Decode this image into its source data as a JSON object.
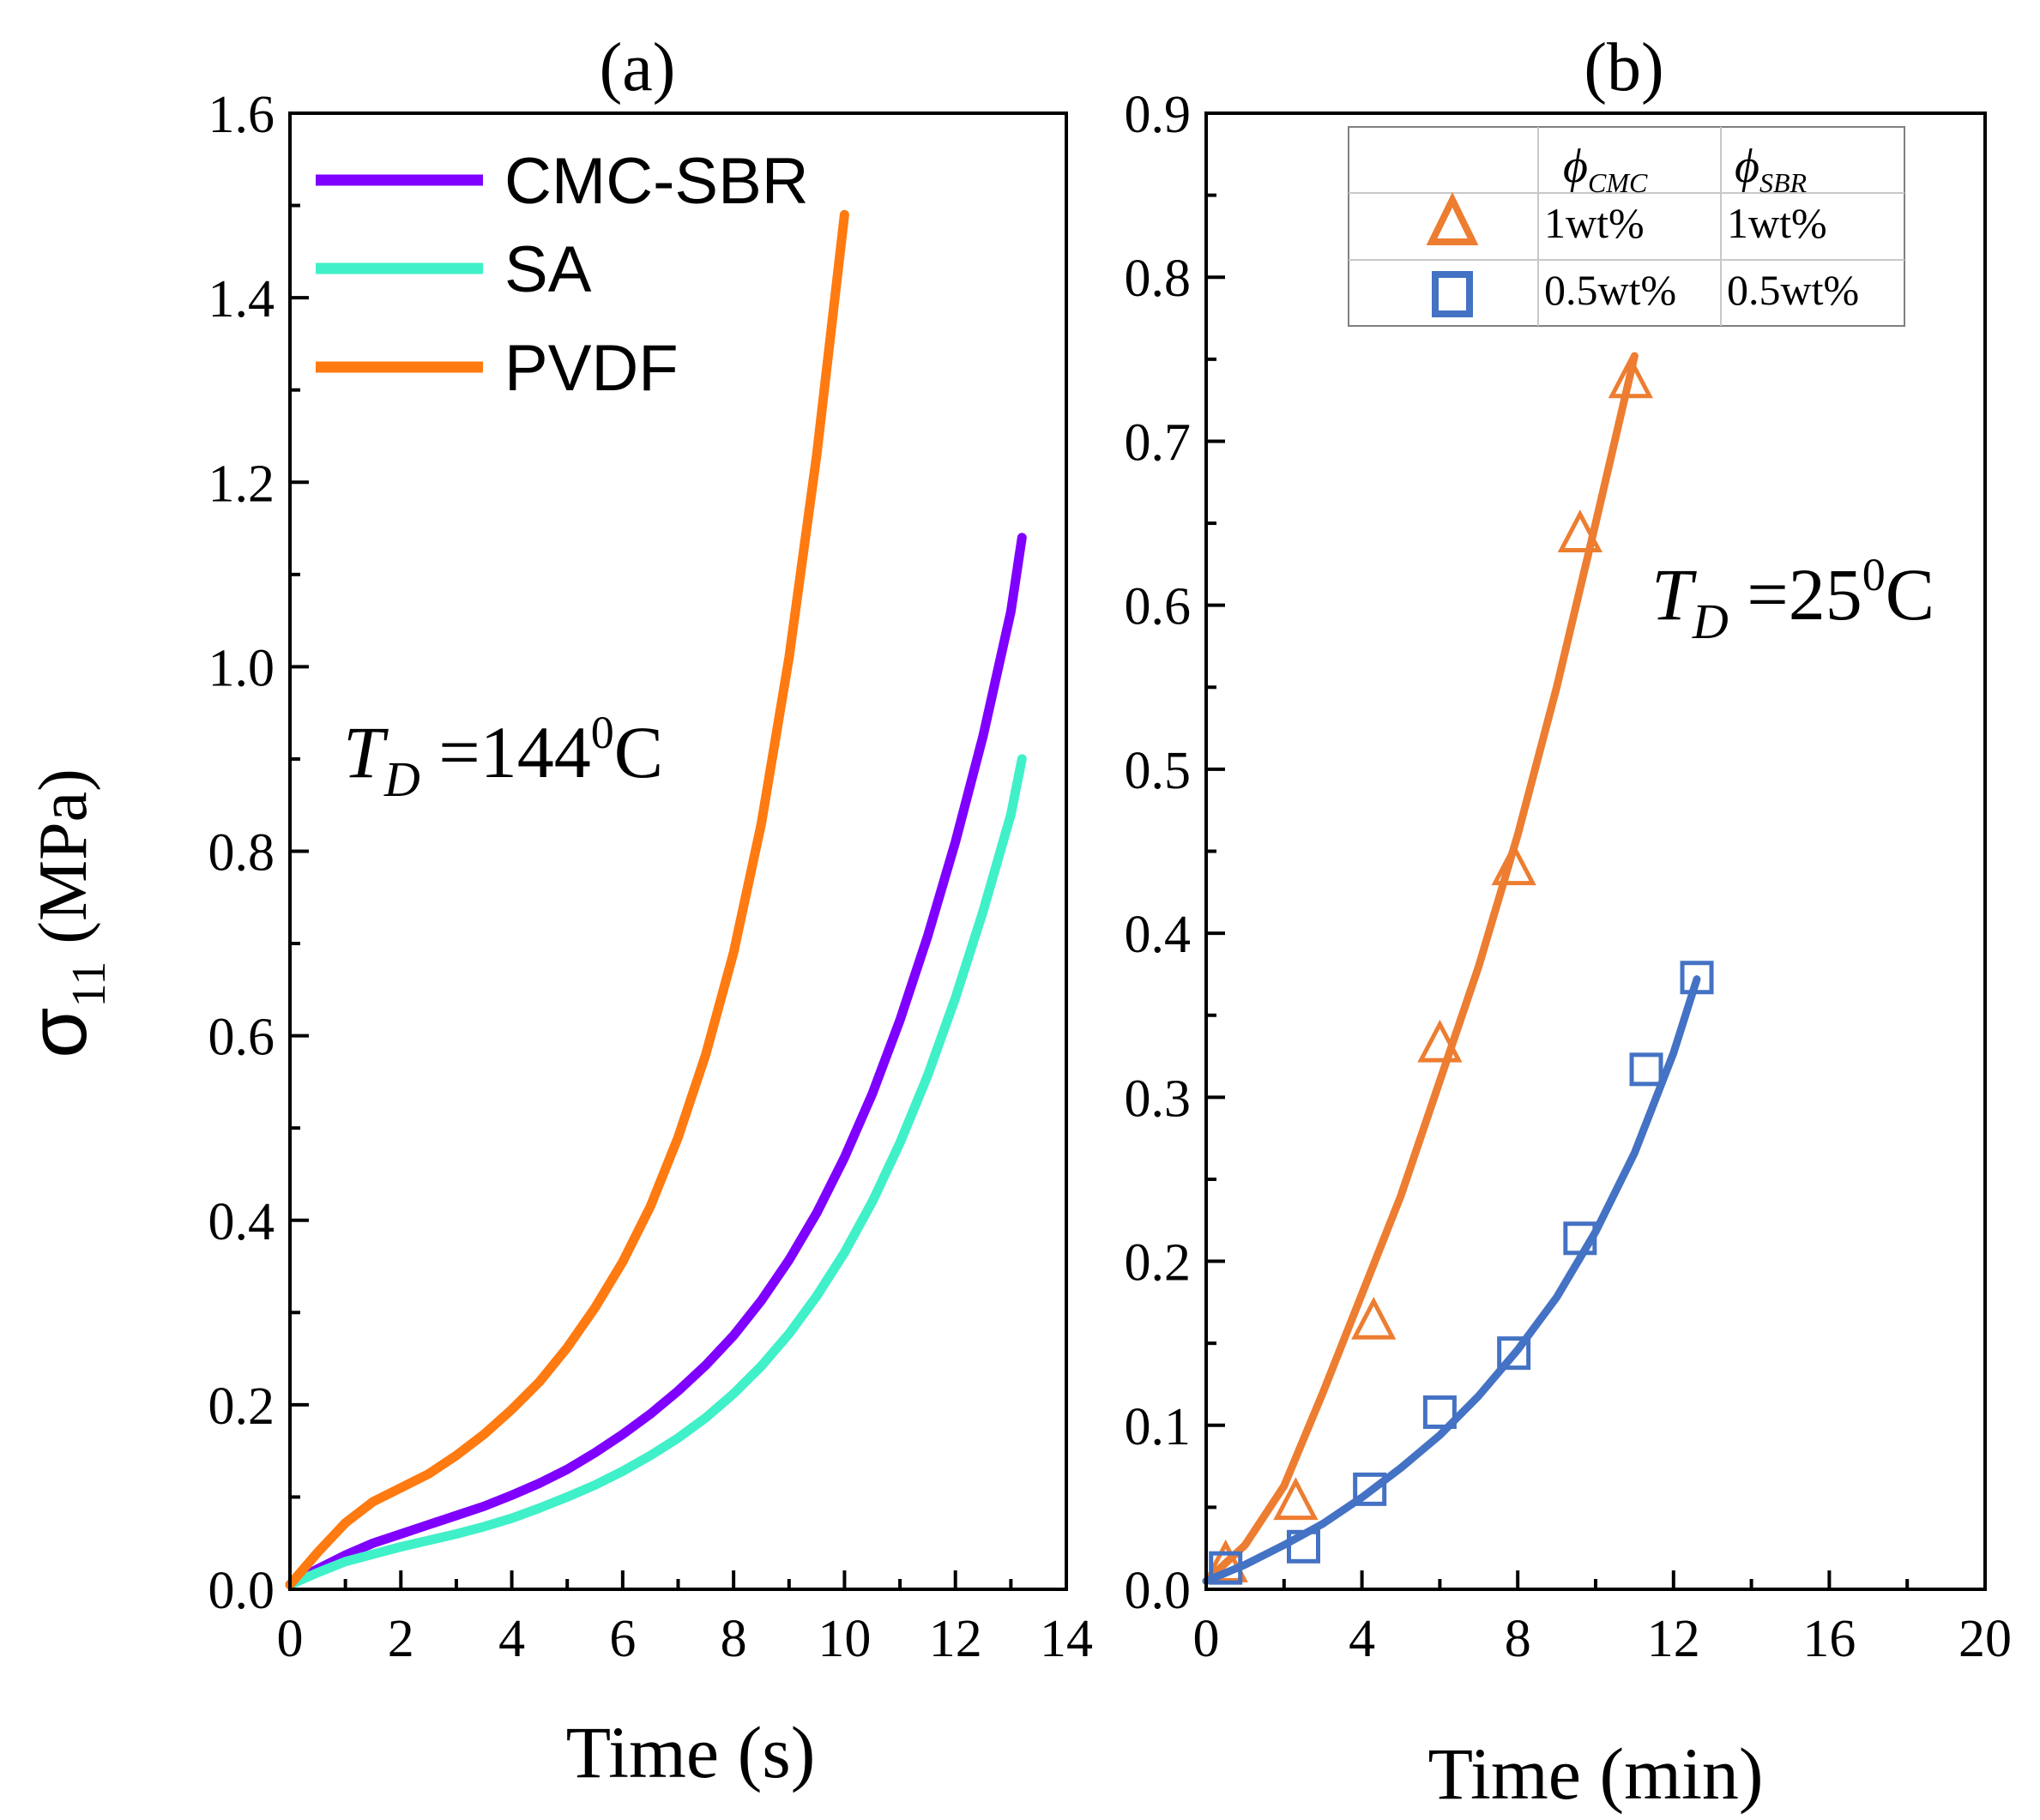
{
  "ylabel": {
    "symbol": "σ",
    "subscript": "11",
    "unit": " (MPa)"
  },
  "chart_data": [
    {
      "type": "line",
      "panel_label": "(a)",
      "xlabel": "Time (s)",
      "ylabel": "σ11 (MPa)",
      "xlim": [
        0,
        14
      ],
      "ylim": [
        0,
        1.6
      ],
      "xticks": [
        "0",
        "2",
        "4",
        "6",
        "8",
        "10",
        "12",
        "14"
      ],
      "yticks": [
        "0.0",
        "0.2",
        "0.4",
        "0.6",
        "0.8",
        "1.0",
        "1.2",
        "1.4",
        "1.6"
      ],
      "annotation": {
        "T": "T",
        "sub": "D",
        "value": " =144",
        "sup": "0",
        "unit": "C"
      },
      "legend_position": "top-left",
      "series": [
        {
          "name": "CMC-SBR",
          "color": "#7f00ff",
          "x": [
            0,
            0.5,
            1,
            1.5,
            2,
            2.5,
            3,
            3.5,
            4,
            4.5,
            5,
            5.5,
            6,
            6.5,
            7,
            7.5,
            8,
            8.5,
            9,
            9.5,
            10,
            10.5,
            11,
            11.5,
            12,
            12.5,
            13,
            13.2
          ],
          "y": [
            0.005,
            0.022,
            0.037,
            0.05,
            0.06,
            0.07,
            0.08,
            0.09,
            0.102,
            0.115,
            0.13,
            0.148,
            0.168,
            0.19,
            0.215,
            0.243,
            0.275,
            0.313,
            0.357,
            0.408,
            0.468,
            0.537,
            0.617,
            0.708,
            0.81,
            0.925,
            1.06,
            1.14
          ]
        },
        {
          "name": "SA",
          "color": "#40f0c8",
          "x": [
            0,
            0.5,
            1,
            1.5,
            2,
            2.5,
            3,
            3.5,
            4,
            4.5,
            5,
            5.5,
            6,
            6.5,
            7,
            7.5,
            8,
            8.5,
            9,
            9.5,
            10,
            10.5,
            11,
            11.5,
            12,
            12.5,
            13,
            13.2
          ],
          "y": [
            0.005,
            0.018,
            0.03,
            0.038,
            0.046,
            0.053,
            0.06,
            0.068,
            0.077,
            0.088,
            0.1,
            0.113,
            0.128,
            0.145,
            0.164,
            0.186,
            0.212,
            0.242,
            0.277,
            0.318,
            0.365,
            0.42,
            0.484,
            0.557,
            0.641,
            0.735,
            0.84,
            0.9
          ]
        },
        {
          "name": "PVDF",
          "color": "#ff7a10",
          "x": [
            0,
            0.5,
            1,
            1.5,
            2,
            2.5,
            3,
            3.5,
            4,
            4.5,
            5,
            5.5,
            6,
            6.5,
            7,
            7.5,
            8,
            8.5,
            9,
            9.5,
            10
          ],
          "y": [
            0.005,
            0.04,
            0.072,
            0.095,
            0.11,
            0.125,
            0.145,
            0.168,
            0.195,
            0.225,
            0.262,
            0.305,
            0.355,
            0.415,
            0.49,
            0.58,
            0.69,
            0.83,
            1.01,
            1.23,
            1.49
          ]
        }
      ]
    },
    {
      "type": "line",
      "panel_label": "(b)",
      "xlabel": "Time (min)",
      "xlim": [
        0,
        20
      ],
      "ylim": [
        0,
        0.9
      ],
      "xticks": [
        "0",
        "4",
        "8",
        "12",
        "16",
        "20"
      ],
      "yticks": [
        "0.0",
        "0.1",
        "0.2",
        "0.3",
        "0.4",
        "0.5",
        "0.6",
        "0.7",
        "0.8",
        "0.9"
      ],
      "annotation": {
        "T": "T",
        "sub": "D",
        "value": " =25",
        "sup": "0",
        "unit": "C"
      },
      "legend_table": {
        "col1": {
          "phi": "ϕ",
          "sub": "CMC"
        },
        "col2": {
          "phi": "ϕ",
          "sub": "SBR"
        },
        "rows": [
          {
            "cmc": "1wt%",
            "sbr": "1wt%"
          },
          {
            "cmc": "0.5wt%",
            "sbr": "0.5wt%"
          }
        ]
      },
      "series": [
        {
          "name": "1wt% / 1wt%",
          "color": "#ed7d31",
          "marker": "triangle",
          "x": [
            0.5,
            2.3,
            4.3,
            6.0,
            7.9,
            9.6,
            10.9
          ],
          "y": [
            0.015,
            0.053,
            0.163,
            0.332,
            0.44,
            0.643,
            0.737
          ],
          "fit_x": [
            0,
            1,
            2,
            3,
            4,
            5,
            6,
            7,
            8,
            9,
            10,
            11
          ],
          "fit_y": [
            0.005,
            0.027,
            0.063,
            0.12,
            0.18,
            0.24,
            0.31,
            0.38,
            0.46,
            0.55,
            0.65,
            0.752
          ]
        },
        {
          "name": "0.5wt% / 0.5wt%",
          "color": "#4472c4",
          "marker": "square",
          "x": [
            0.5,
            2.5,
            4.2,
            6.0,
            7.9,
            9.6,
            11.3,
            12.6
          ],
          "y": [
            0.013,
            0.026,
            0.061,
            0.108,
            0.144,
            0.214,
            0.317,
            0.373
          ],
          "fit_x": [
            0,
            1,
            2,
            3,
            4,
            5,
            6,
            7,
            8,
            9,
            10,
            11,
            12,
            12.6
          ],
          "fit_y": [
            0.005,
            0.015,
            0.027,
            0.04,
            0.056,
            0.074,
            0.094,
            0.118,
            0.146,
            0.178,
            0.218,
            0.266,
            0.327,
            0.372
          ]
        }
      ]
    }
  ]
}
